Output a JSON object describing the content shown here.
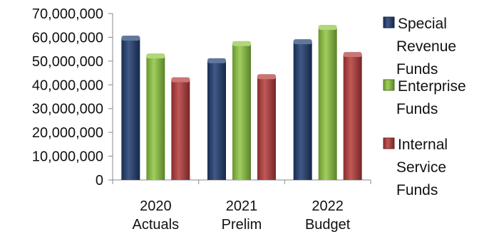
{
  "chart_data": {
    "type": "bar",
    "title": "",
    "xlabel": "",
    "ylabel": "",
    "categories": [
      [
        "2020",
        "Actuals"
      ],
      [
        "2021",
        "Prelim"
      ],
      [
        "2022",
        "Budget"
      ]
    ],
    "series": [
      {
        "name": [
          "Special",
          "Revenue",
          "Funds"
        ],
        "values": [
          59500000,
          50000000,
          58000000
        ],
        "color": "#1f3c70"
      },
      {
        "name": [
          "Enterprise",
          "Funds"
        ],
        "values": [
          52000000,
          57200000,
          64000000
        ],
        "color": "#8ec641"
      },
      {
        "name": [
          "Internal",
          "Service",
          "Funds"
        ],
        "values": [
          42000000,
          43300000,
          52600000
        ],
        "color": "#b53a3a"
      }
    ],
    "y_ticks": [
      "0",
      "10,000,000",
      "20,000,000",
      "30,000,000",
      "40,000,000",
      "50,000,000",
      "60,000,000",
      "70,000,000"
    ],
    "ylim": [
      0,
      70000000
    ],
    "grid": false,
    "legend_position": "right"
  }
}
